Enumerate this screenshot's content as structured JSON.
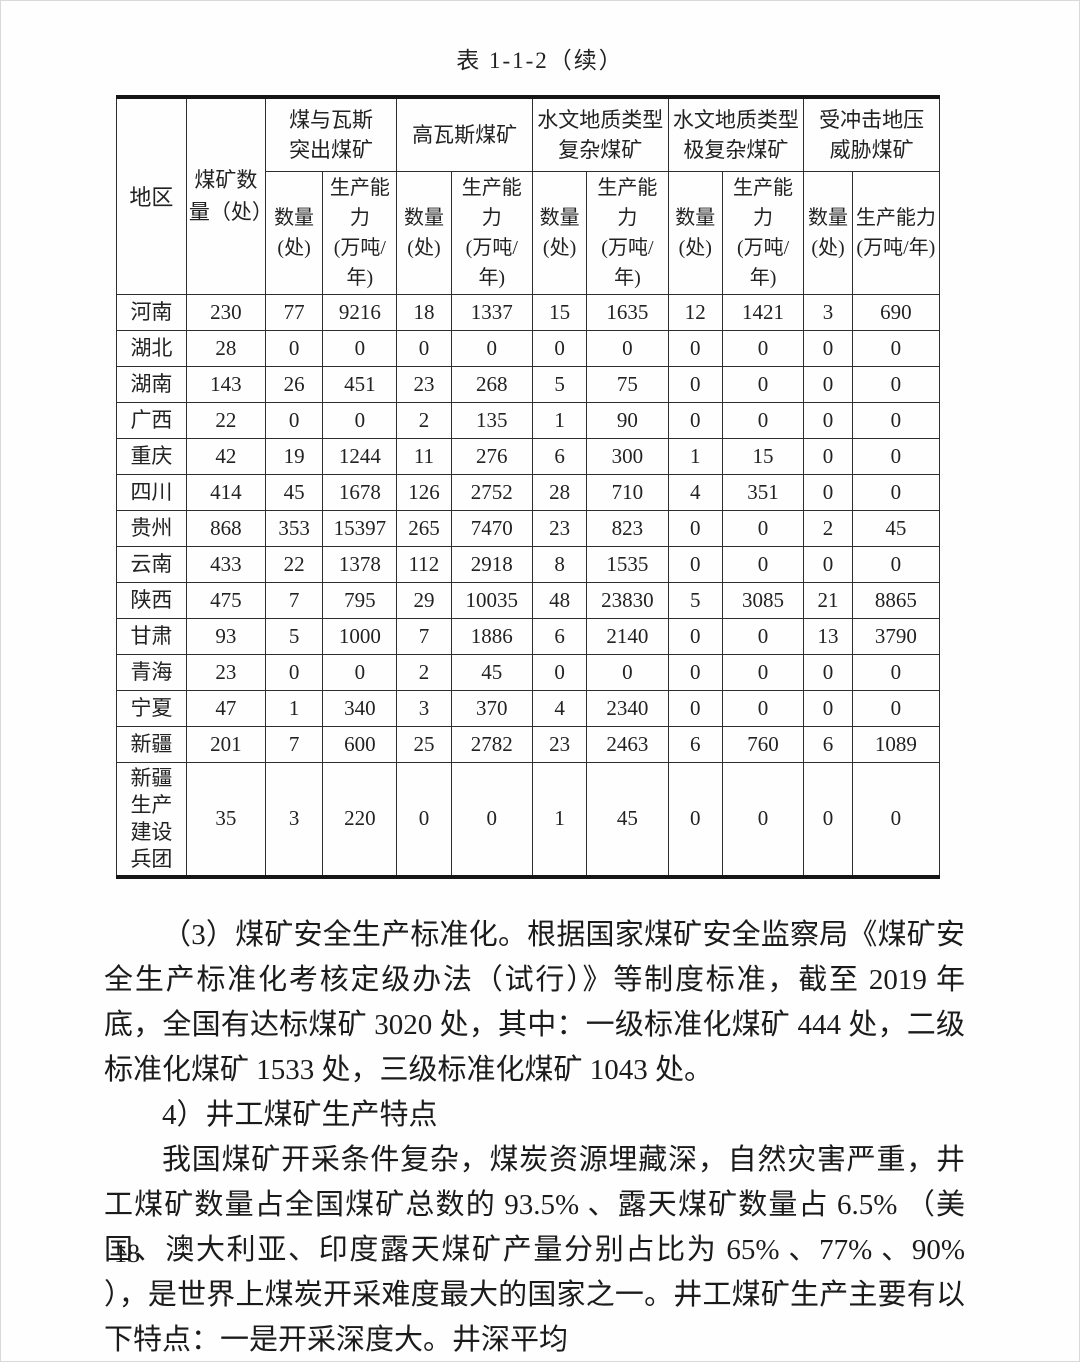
{
  "caption": "表 1-1-2（续）",
  "table": {
    "region_header": "地区",
    "total_header": "煤矿数\n量（处）",
    "groups": [
      "煤与瓦斯\n突出煤矿",
      "高瓦斯煤矿",
      "水文地质类型\n复杂煤矿",
      "水文地质类型\n极复杂煤矿",
      "受冲击地压\n威胁煤矿"
    ],
    "sub_count": "数量\n(处)",
    "sub_capacity": "生产能力\n(万吨/年)",
    "rows": [
      {
        "region": "河南",
        "values": [
          230,
          77,
          9216,
          18,
          1337,
          15,
          1635,
          12,
          1421,
          3,
          690
        ]
      },
      {
        "region": "湖北",
        "values": [
          28,
          0,
          0,
          0,
          0,
          0,
          0,
          0,
          0,
          0,
          0
        ]
      },
      {
        "region": "湖南",
        "values": [
          143,
          26,
          451,
          23,
          268,
          5,
          75,
          0,
          0,
          0,
          0
        ]
      },
      {
        "region": "广西",
        "values": [
          22,
          0,
          0,
          2,
          135,
          1,
          90,
          0,
          0,
          0,
          0
        ]
      },
      {
        "region": "重庆",
        "values": [
          42,
          19,
          1244,
          11,
          276,
          6,
          300,
          1,
          15,
          0,
          0
        ]
      },
      {
        "region": "四川",
        "values": [
          414,
          45,
          1678,
          126,
          2752,
          28,
          710,
          4,
          351,
          0,
          0
        ]
      },
      {
        "region": "贵州",
        "values": [
          868,
          353,
          15397,
          265,
          7470,
          23,
          823,
          0,
          0,
          2,
          45
        ]
      },
      {
        "region": "云南",
        "values": [
          433,
          22,
          1378,
          112,
          2918,
          8,
          1535,
          0,
          0,
          0,
          0
        ]
      },
      {
        "region": "陕西",
        "values": [
          475,
          7,
          795,
          29,
          10035,
          48,
          23830,
          5,
          3085,
          21,
          8865
        ]
      },
      {
        "region": "甘肃",
        "values": [
          93,
          5,
          1000,
          7,
          1886,
          6,
          2140,
          0,
          0,
          13,
          3790
        ]
      },
      {
        "region": "青海",
        "values": [
          23,
          0,
          0,
          2,
          45,
          0,
          0,
          0,
          0,
          0,
          0
        ]
      },
      {
        "region": "宁夏",
        "values": [
          47,
          1,
          340,
          3,
          370,
          4,
          2340,
          0,
          0,
          0,
          0
        ]
      },
      {
        "region": "新疆",
        "values": [
          201,
          7,
          600,
          25,
          2782,
          23,
          2463,
          6,
          760,
          6,
          1089
        ]
      },
      {
        "region": "新疆生产建设兵团",
        "values": [
          35,
          3,
          220,
          0,
          0,
          1,
          45,
          0,
          0,
          0,
          0
        ]
      }
    ]
  },
  "paragraphs": [
    {
      "type": "body",
      "text": "（3）煤矿安全生产标准化。根据国家煤矿安全监察局《煤矿安全生产标准化考核定级办法（试行）》等制度标准，截至 2019 年底，全国有达标煤矿 3020 处，其中：一级标准化煤矿 444 处，二级标准化煤矿 1533 处，三级标准化煤矿 1043 处。"
    },
    {
      "type": "heading",
      "text": "4）井工煤矿生产特点"
    },
    {
      "type": "body",
      "text": "我国煤矿开采条件复杂，煤炭资源埋藏深，自然灾害严重，井工煤矿数量占全国煤矿总数的 93.5% 、露天煤矿数量占 6.5% （美国、澳大利亚、印度露天煤矿产量分别占比为 65% 、77% 、90% ），是世界上煤炭开采难度最大的国家之一。井工煤矿生产主要有以下特点：一是开采深度大。井深平均"
    }
  ],
  "page_number": "18"
}
